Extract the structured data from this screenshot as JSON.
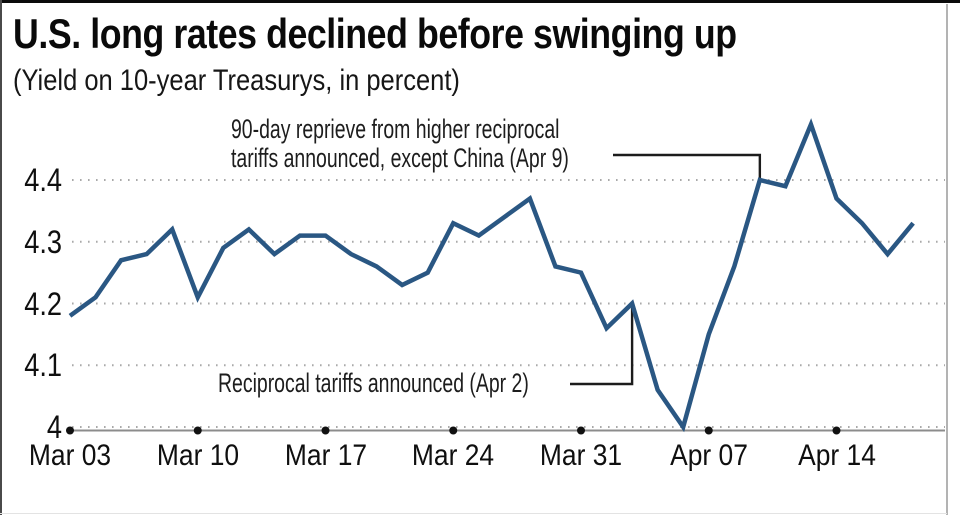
{
  "card": {
    "title": "U.S. long rates declined before swinging up",
    "subtitle": "(Yield on 10-year Treasurys, in percent)"
  },
  "annotations": {
    "apr9_line1": "90-day reprieve from higher reciprocal",
    "apr9_line2": "tariffs announced, except China (Apr 9)",
    "apr2_text": "Reciprocal tariffs announced (Apr 2)"
  },
  "colors": {
    "line": "#2a5783",
    "grid": "#a9a9a9",
    "axis": "#8c8c8c",
    "tick_dot": "#111111",
    "connector": "#1c1c1c",
    "text": "#0f0f0f"
  },
  "chart_data": {
    "type": "line",
    "title": "U.S. long rates declined before swinging up",
    "subtitle": "(Yield on 10-year Treasurys, in percent)",
    "series_name": "Yield on 10-year Treasurys, in percent",
    "xlabel": "",
    "ylabel": "",
    "grid": "horizontal-dotted",
    "legend": "none",
    "ylim": [
      4.0,
      4.5
    ],
    "y_ticks": [
      4.0,
      4.1,
      4.2,
      4.3,
      4.4
    ],
    "y_tick_labels": [
      "4",
      "4.1",
      "4.2",
      "4.3",
      "4.4"
    ],
    "x": [
      "Mar 03",
      "Mar 04",
      "Mar 05",
      "Mar 06",
      "Mar 07",
      "Mar 10",
      "Mar 11",
      "Mar 12",
      "Mar 13",
      "Mar 14",
      "Mar 17",
      "Mar 18",
      "Mar 19",
      "Mar 20",
      "Mar 21",
      "Mar 24",
      "Mar 25",
      "Mar 26",
      "Mar 27",
      "Mar 28",
      "Mar 31",
      "Apr 01",
      "Apr 02",
      "Apr 03",
      "Apr 04",
      "Apr 07",
      "Apr 08",
      "Apr 09",
      "Apr 10",
      "Apr 11",
      "Apr 14",
      "Apr 15",
      "Apr 16",
      "Apr 17"
    ],
    "values": [
      4.18,
      4.21,
      4.27,
      4.28,
      4.32,
      4.21,
      4.29,
      4.32,
      4.28,
      4.31,
      4.31,
      4.28,
      4.26,
      4.23,
      4.25,
      4.33,
      4.31,
      4.34,
      4.37,
      4.26,
      4.25,
      4.16,
      4.2,
      4.06,
      4.0,
      4.15,
      4.26,
      4.4,
      4.39,
      4.49,
      4.37,
      4.33,
      4.28,
      4.33
    ],
    "x_tick_labels": [
      "Mar 03",
      "Mar 10",
      "Mar 17",
      "Mar 24",
      "Mar 31",
      "Apr 07",
      "Apr 14"
    ],
    "x_tick_indices": [
      0,
      5,
      10,
      15,
      20,
      25,
      30
    ],
    "callouts": [
      {
        "label": "90-day reprieve from higher reciprocal tariffs announced, except China (Apr 9)",
        "x": "Apr 09",
        "index": 27,
        "value": 4.4
      },
      {
        "label": "Reciprocal tariffs announced (Apr 2)",
        "x": "Apr 02",
        "index": 22,
        "value": 4.2
      }
    ]
  }
}
